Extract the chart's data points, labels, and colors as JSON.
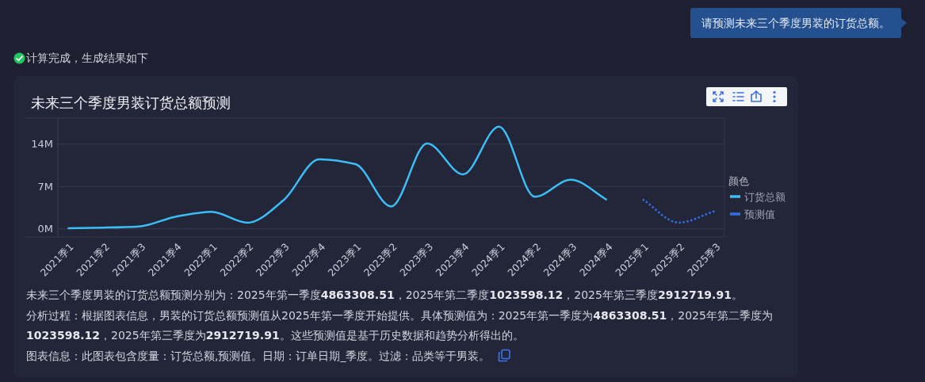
{
  "chart_data": {
    "type": "line",
    "title": "未来三个季度男装订货总额预测",
    "categories": [
      "2021季1",
      "2021季2",
      "2021季3",
      "2021季4",
      "2022季1",
      "2022季2",
      "2022季3",
      "2022季4",
      "2023季1",
      "2023季2",
      "2023季3",
      "2023季4",
      "2024季1",
      "2024季2",
      "2024季3",
      "2024季4",
      "2025季1",
      "2025季2",
      "2025季3"
    ],
    "series": [
      {
        "name": "订货总额",
        "color": "#3bbdf6",
        "line_style": "solid",
        "values": [
          100000,
          200000,
          400000,
          2000000,
          2800000,
          1000000,
          4700000,
          11500000,
          10700000,
          3700000,
          14100000,
          9000000,
          16900000,
          5300000,
          8100000,
          4800000,
          null,
          null,
          null
        ]
      },
      {
        "name": "预测值",
        "color": "#2f6fe8",
        "line_style": "dotted",
        "values": [
          null,
          null,
          null,
          null,
          null,
          null,
          null,
          null,
          null,
          null,
          null,
          null,
          null,
          null,
          null,
          null,
          4863308.51,
          1023598.12,
          2912719.91
        ]
      }
    ],
    "ylim": [
      -1350000,
      18300000
    ],
    "yticks": [
      {
        "value": 0,
        "label": "0M"
      },
      {
        "value": 7000000,
        "label": "7M"
      },
      {
        "value": 14000000,
        "label": "14M"
      }
    ],
    "grid": "y",
    "legend": "right",
    "legend_title": "颜色",
    "annotations": [
      "请预测未来三个季度男装的订货总额。",
      "计算完成，生成结果如下",
      "未来三个季度男装的订货总额预测分别为：2025年第一季度4863308.51，2025年第二季度1023598.12，2025年第三季度2912719.91。",
      "分析过程：根据图表信息，男装的订货总额预测值从2025年第一季度开始提供。具体预测值为：2025年第一季度为4863308.51，2025年第二季度为1023598.12，2025年第三季度为2912719.91。这些预测值是基于历史数据和趋势分析得出的。",
      "图表信息：此图表包含度量：订货总额,预测值。日期：订单日期_季度。过滤：品类等于男装。"
    ]
  }
}
